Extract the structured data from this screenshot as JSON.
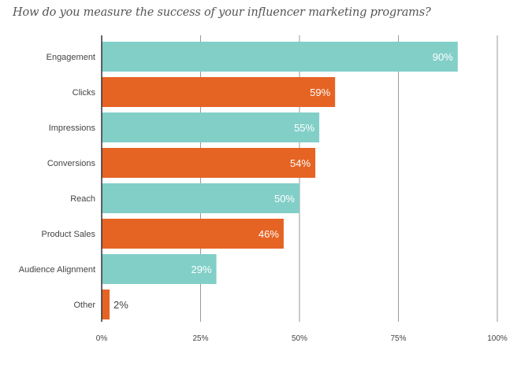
{
  "chart_data": {
    "type": "bar",
    "orientation": "horizontal",
    "title": "How do you measure the success of your influencer marketing programs?",
    "categories": [
      "Engagement",
      "Clicks",
      "Impressions",
      "Conversions",
      "Reach",
      "Product Sales",
      "Audience Alignment",
      "Other"
    ],
    "values": [
      90,
      59,
      55,
      54,
      50,
      46,
      29,
      2
    ],
    "data_labels": [
      "90%",
      "59%",
      "55%",
      "54%",
      "50%",
      "46%",
      "29%",
      "2%"
    ],
    "xlim": [
      0,
      100
    ],
    "xticks": [
      0,
      25,
      50,
      75,
      100
    ],
    "xtick_labels": [
      "0%",
      "25%",
      "50%",
      "75%",
      "100%"
    ],
    "grid": true,
    "colors": [
      "#82cfc8",
      "#e56424"
    ],
    "color_pattern": "alternating"
  }
}
